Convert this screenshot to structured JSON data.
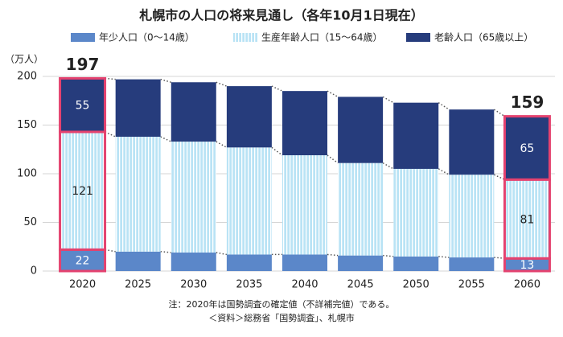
{
  "chart_data": {
    "type": "bar",
    "stacked": true,
    "title": "札幌市の人口の将来見通し（各年10月1日現在）",
    "y_unit": "（万人）",
    "categories": [
      "2020",
      "2025",
      "2030",
      "2035",
      "2040",
      "2045",
      "2050",
      "2055",
      "2060"
    ],
    "series": [
      {
        "name": "年少人口（0〜14歳）",
        "color": "#5b87c9",
        "values": [
          22,
          20,
          19,
          17,
          17,
          16,
          15,
          14,
          13
        ]
      },
      {
        "name": "生産年齢人口（15〜64歳）",
        "color": "#b9e3f5",
        "values": [
          121,
          118,
          114,
          110,
          102,
          95,
          90,
          85,
          81
        ]
      },
      {
        "name": "老齢人口（65歳以上）",
        "color": "#263c7c",
        "values": [
          55,
          59,
          61,
          63,
          66,
          68,
          68,
          67,
          65
        ]
      }
    ],
    "total_labels": [
      197,
      null,
      null,
      null,
      null,
      null,
      null,
      null,
      159
    ],
    "highlight_color": "#e4426f",
    "ylim": [
      0,
      200
    ],
    "yticks": [
      0,
      50,
      100,
      150,
      200
    ],
    "grid": true,
    "notes": [
      "注：2020年は国勢調査の確定値（不詳補完値）である。",
      "＜資料＞総務省「国勢調査」、札幌市"
    ]
  }
}
